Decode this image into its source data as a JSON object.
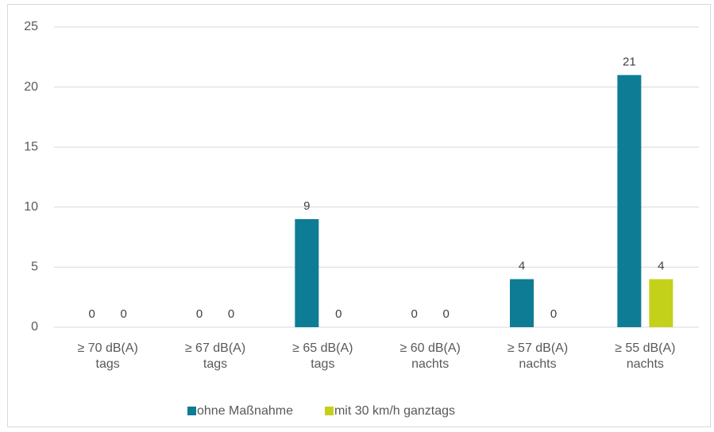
{
  "chart_data": {
    "type": "bar",
    "categories": [
      [
        "≥ 70 dB(A)",
        "tags"
      ],
      [
        "≥ 67 dB(A)",
        "tags"
      ],
      [
        "≥ 65 dB(A)",
        "tags"
      ],
      [
        "≥ 60 dB(A)",
        "nachts"
      ],
      [
        "≥ 57 dB(A)",
        "nachts"
      ],
      [
        "≥ 55 dB(A)",
        "nachts"
      ]
    ],
    "series": [
      {
        "name": "ohne Maßnahme",
        "color": "#0e7c94",
        "values": [
          0,
          0,
          9,
          0,
          4,
          21
        ]
      },
      {
        "name": "mit 30 km/h ganztags",
        "color": "#c4d11a",
        "values": [
          0,
          0,
          0,
          0,
          0,
          4
        ]
      }
    ],
    "ylim": [
      0,
      25
    ],
    "yticks": [
      0,
      5,
      10,
      15,
      20,
      25
    ],
    "grid": true,
    "legend": "bottom"
  }
}
